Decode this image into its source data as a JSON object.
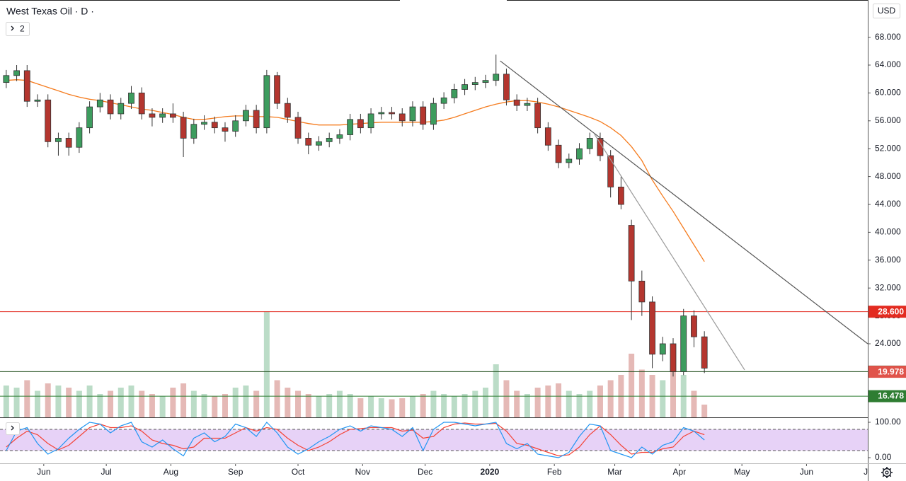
{
  "chart_data": {
    "type": "candlestick",
    "title": "West Texas Oil · D ·",
    "currency": "USD",
    "indicator_count": "2",
    "x": [
      3,
      8,
      13,
      18,
      23,
      28,
      33,
      38,
      43,
      48,
      53,
      58,
      63,
      68,
      73,
      78,
      83,
      88,
      93,
      98,
      103,
      108,
      113,
      118,
      123,
      128,
      133,
      138,
      143,
      148,
      153,
      158,
      163,
      168,
      173,
      178,
      183,
      188,
      193,
      198,
      203,
      208,
      213,
      218,
      223,
      228,
      233,
      238,
      243,
      248,
      253,
      258,
      263,
      268,
      273,
      278,
      283,
      288,
      293,
      298,
      303,
      308,
      313,
      318,
      323,
      328,
      333,
      338
    ],
    "open": [
      61.5,
      62.5,
      63.2,
      58.8,
      59.0,
      53.0,
      53.5,
      52.2,
      55.0,
      58.0,
      59.0,
      57.0,
      58.5,
      60.0,
      57.0,
      56.5,
      57.0,
      56.5,
      53.5,
      55.5,
      55.8,
      55.0,
      54.5,
      56.0,
      57.5,
      55.0,
      62.5,
      58.5,
      56.5,
      53.5,
      52.5,
      53.0,
      53.5,
      54.0,
      56.2,
      55.0,
      57.0,
      57.2,
      57.0,
      56.0,
      58.0,
      55.5,
      58.5,
      59.3,
      60.5,
      61.2,
      61.5,
      61.8,
      62.7,
      59.0,
      58.2,
      58.5,
      55.0,
      52.5,
      50.0,
      50.5,
      52.0,
      53.5,
      51.0,
      46.5,
      41.0,
      33.0,
      30.0,
      22.5,
      24.0,
      20.0,
      28.0,
      25.0
    ],
    "high": [
      63.3,
      64.0,
      64.0,
      59.8,
      59.8,
      54.3,
      54.3,
      55.8,
      58.8,
      60.0,
      59.8,
      59.3,
      61.0,
      60.8,
      57.8,
      57.8,
      58.5,
      57.3,
      56.3,
      56.8,
      56.6,
      55.8,
      56.8,
      58.3,
      58.3,
      63.3,
      63.0,
      59.3,
      57.3,
      54.3,
      53.8,
      54.3,
      54.8,
      57.0,
      57.0,
      57.8,
      58.0,
      58.0,
      57.8,
      58.8,
      58.8,
      59.3,
      60.1,
      61.3,
      62.0,
      62.3,
      62.6,
      65.5,
      63.5,
      59.8,
      59.3,
      59.3,
      55.8,
      53.3,
      51.3,
      52.8,
      54.3,
      54.3,
      51.8,
      48.0,
      41.8,
      34.5,
      30.8,
      25.0,
      24.8,
      29.0,
      28.8,
      25.8
    ],
    "low": [
      60.7,
      61.7,
      58.0,
      58.0,
      52.2,
      51.0,
      51.0,
      51.4,
      54.2,
      57.2,
      56.2,
      56.2,
      57.7,
      56.2,
      55.2,
      55.7,
      55.7,
      50.8,
      52.7,
      54.7,
      54.2,
      53.0,
      53.7,
      55.2,
      54.2,
      54.2,
      57.7,
      55.7,
      52.7,
      51.2,
      51.7,
      52.2,
      52.7,
      53.2,
      54.2,
      54.2,
      56.2,
      56.2,
      55.2,
      55.2,
      54.7,
      54.7,
      57.7,
      58.5,
      59.7,
      60.4,
      60.7,
      61.0,
      58.2,
      57.4,
      57.4,
      54.2,
      51.7,
      49.2,
      49.2,
      49.7,
      51.2,
      50.2,
      45.0,
      43.3,
      27.4,
      28.0,
      20.5,
      21.5,
      19.3,
      19.5,
      23.5,
      19.8
    ],
    "close": [
      62.5,
      63.2,
      58.8,
      59.0,
      53.0,
      53.5,
      52.2,
      55.0,
      58.0,
      59.0,
      57.0,
      58.5,
      60.0,
      57.0,
      56.5,
      57.0,
      56.5,
      53.5,
      55.5,
      55.8,
      55.0,
      54.5,
      56.0,
      57.5,
      55.0,
      62.5,
      58.5,
      56.5,
      53.5,
      52.5,
      53.0,
      53.5,
      54.0,
      56.2,
      55.0,
      57.0,
      57.2,
      57.0,
      56.0,
      58.0,
      55.5,
      58.5,
      59.3,
      60.5,
      61.2,
      61.5,
      61.8,
      62.7,
      59.0,
      58.2,
      58.5,
      55.0,
      52.5,
      50.0,
      50.5,
      52.0,
      53.5,
      51.0,
      46.5,
      44.0,
      33.0,
      30.0,
      22.5,
      24.0,
      20.0,
      28.0,
      25.0,
      20.5
    ],
    "volume": [
      30,
      28,
      35,
      25,
      32,
      30,
      28,
      25,
      30,
      22,
      25,
      28,
      30,
      25,
      22,
      20,
      28,
      32,
      25,
      22,
      20,
      22,
      28,
      30,
      25,
      100,
      35,
      28,
      25,
      22,
      20,
      22,
      25,
      22,
      18,
      20,
      18,
      17,
      18,
      20,
      22,
      25,
      22,
      20,
      22,
      25,
      28,
      50,
      35,
      25,
      22,
      28,
      30,
      32,
      25,
      22,
      25,
      30,
      35,
      40,
      60,
      45,
      40,
      35,
      45,
      40,
      25,
      12
    ],
    "volume_ylim": [
      0,
      100
    ],
    "ma": [
      61.8,
      61.9,
      61.8,
      61.3,
      60.8,
      60.3,
      59.8,
      59.4,
      59.1,
      58.9,
      58.6,
      58.3,
      58.0,
      57.7,
      57.5,
      57.2,
      56.9,
      56.5,
      56.2,
      56.2,
      56.4,
      56.6,
      56.7,
      56.7,
      56.6,
      56.6,
      56.5,
      56.2,
      55.9,
      55.6,
      55.4,
      55.4,
      55.4,
      55.5,
      55.6,
      55.7,
      55.8,
      55.8,
      55.8,
      55.8,
      55.8,
      55.9,
      56.1,
      56.5,
      57.0,
      57.5,
      58.0,
      58.4,
      58.7,
      58.9,
      58.9,
      58.7,
      58.4,
      58.0,
      57.5,
      57.0,
      56.5,
      55.9,
      55.0,
      53.9,
      52.3,
      50.3,
      47.5,
      45.2,
      43.0,
      40.6,
      38.2,
      35.8
    ],
    "ma_color": "#f57c1f",
    "up_color": "#3d9c5e",
    "down_color": "#b4362f",
    "xlim": [
      0,
      416.4
    ],
    "ylim": [
      13.44,
      73.34
    ],
    "yticks": [
      {
        "value": 24,
        "label": "24.000"
      },
      {
        "value": 28,
        "label": "28.000"
      },
      {
        "value": 32,
        "label": "32.000"
      },
      {
        "value": 36,
        "label": "36.000"
      },
      {
        "value": 40,
        "label": "40.000"
      },
      {
        "value": 44,
        "label": "44.000"
      },
      {
        "value": 48,
        "label": "48.000"
      },
      {
        "value": 52,
        "label": "52.000"
      },
      {
        "value": 56,
        "label": "56.000"
      },
      {
        "value": 60,
        "label": "60.000"
      },
      {
        "value": 64,
        "label": "64.000"
      },
      {
        "value": 68,
        "label": "68.000"
      }
    ],
    "xticks": [
      {
        "value": 21,
        "label": "Jun"
      },
      {
        "value": 51,
        "label": "Jul"
      },
      {
        "value": 82,
        "label": "Aug"
      },
      {
        "value": 113,
        "label": "Sep"
      },
      {
        "value": 143,
        "label": "Oct"
      },
      {
        "value": 174,
        "label": "Nov"
      },
      {
        "value": 204,
        "label": "Dec"
      },
      {
        "value": 235,
        "label": "2020"
      },
      {
        "value": 266,
        "label": "Feb"
      },
      {
        "value": 295,
        "label": "Mar"
      },
      {
        "value": 326,
        "label": "Apr"
      },
      {
        "value": 356,
        "label": "May"
      },
      {
        "value": 387,
        "label": "Jun"
      },
      {
        "value": 417,
        "label": "Jul"
      }
    ],
    "price_lines": [
      {
        "value": 28.6,
        "label": "28.600",
        "color": "#e32b20"
      },
      {
        "value": 20.0,
        "label": "20.000",
        "color": "#1e4d1a"
      },
      {
        "value": 16.478,
        "label": "16.478",
        "color": "#2e7d32"
      }
    ],
    "last_price": {
      "value": 19.978,
      "label": "19.978",
      "color": "#e0534a"
    },
    "trendlines": [
      {
        "x": [
          240,
          416.4
        ],
        "y": [
          64.6,
          24.0
        ],
        "color": "#555555"
      },
      {
        "x": [
          285.3,
          357.3
        ],
        "y": [
          54.05,
          20.25
        ],
        "color": "#9a9a9a"
      }
    ],
    "stoch": {
      "k": [
        20,
        75,
        85,
        40,
        10,
        25,
        55,
        80,
        100,
        95,
        70,
        90,
        100,
        45,
        30,
        50,
        25,
        5,
        55,
        70,
        45,
        60,
        95,
        85,
        60,
        100,
        70,
        30,
        10,
        25,
        45,
        60,
        80,
        90,
        75,
        90,
        85,
        80,
        60,
        85,
        20,
        80,
        100,
        100,
        95,
        90,
        95,
        100,
        40,
        25,
        40,
        10,
        5,
        0,
        15,
        60,
        95,
        90,
        20,
        10,
        0,
        30,
        10,
        35,
        45,
        85,
        75,
        50
      ],
      "d": [
        30,
        55,
        75,
        65,
        40,
        22,
        35,
        60,
        85,
        95,
        85,
        85,
        90,
        75,
        50,
        40,
        35,
        25,
        30,
        55,
        55,
        55,
        70,
        85,
        75,
        85,
        80,
        55,
        35,
        20,
        30,
        45,
        65,
        80,
        82,
        85,
        85,
        85,
        75,
        78,
        55,
        60,
        85,
        95,
        98,
        95,
        95,
        97,
        75,
        40,
        35,
        25,
        15,
        5,
        8,
        30,
        65,
        90,
        65,
        35,
        10,
        15,
        15,
        25,
        30,
        60,
        75,
        65
      ],
      "k_color": "#2196f3",
      "d_color": "#f44336",
      "band_color": "#e1c7f5",
      "bands": [
        20,
        80
      ],
      "ylim": [
        -16,
        110
      ],
      "yticks": [
        {
          "value": 0,
          "label": "0.00"
        },
        {
          "value": 100,
          "label": "100.00"
        }
      ]
    }
  }
}
